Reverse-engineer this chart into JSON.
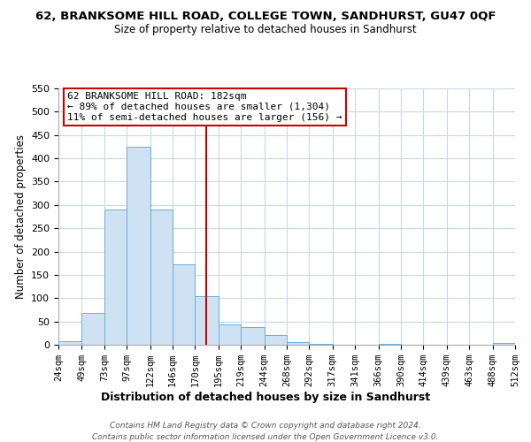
{
  "title": "62, BRANKSOME HILL ROAD, COLLEGE TOWN, SANDHURST, GU47 0QF",
  "subtitle": "Size of property relative to detached houses in Sandhurst",
  "xlabel": "Distribution of detached houses by size in Sandhurst",
  "ylabel": "Number of detached properties",
  "bar_edges": [
    24,
    49,
    73,
    97,
    122,
    146,
    170,
    195,
    219,
    244,
    268,
    292,
    317,
    341,
    366,
    390,
    414,
    439,
    463,
    488,
    512
  ],
  "bar_heights": [
    8,
    68,
    290,
    425,
    290,
    173,
    105,
    43,
    38,
    20,
    5,
    2,
    0,
    0,
    2,
    0,
    0,
    0,
    0,
    3
  ],
  "bar_color": "#cfe2f3",
  "bar_edge_color": "#6baed6",
  "vline_x": 182,
  "vline_color": "#cc0000",
  "ylim": [
    0,
    550
  ],
  "yticks": [
    0,
    50,
    100,
    150,
    200,
    250,
    300,
    350,
    400,
    450,
    500,
    550
  ],
  "tick_labels": [
    "24sqm",
    "49sqm",
    "73sqm",
    "97sqm",
    "122sqm",
    "146sqm",
    "170sqm",
    "195sqm",
    "219sqm",
    "244sqm",
    "268sqm",
    "292sqm",
    "317sqm",
    "341sqm",
    "366sqm",
    "390sqm",
    "414sqm",
    "439sqm",
    "463sqm",
    "488sqm",
    "512sqm"
  ],
  "annotation_line1": "62 BRANKSOME HILL ROAD: 182sqm",
  "annotation_line2": "← 89% of detached houses are smaller (1,304)",
  "annotation_line3": "11% of semi-detached houses are larger (156) →",
  "annotation_box_color": "#ffffff",
  "annotation_box_edge_color": "#cc0000",
  "footer_line1": "Contains HM Land Registry data © Crown copyright and database right 2024.",
  "footer_line2": "Contains public sector information licensed under the Open Government Licence v3.0.",
  "grid_color": "#c8d8e8",
  "background_color": "#ffffff"
}
